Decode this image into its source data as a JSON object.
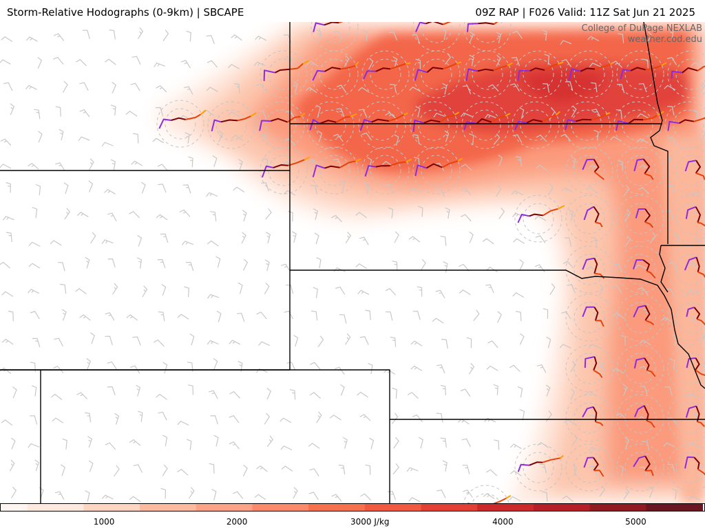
{
  "header": {
    "title_left": "Storm-Relative Hodographs (0-9km) | SBCAPE",
    "title_right": "09Z RAP | F026 Valid: 11Z Sat Jun 21 2025"
  },
  "credit": {
    "line1": "College of DuPage NEXLAB",
    "line2": "weather.cod.edu"
  },
  "colorbar": {
    "unit": "J/kg",
    "range": [
      0,
      5500
    ],
    "tick_values": [
      1000,
      2000,
      3000,
      4000,
      5000
    ],
    "tick_labels": [
      "1000",
      "2000",
      "3000 J/kg",
      "4000",
      "5000"
    ],
    "colors": [
      "#fff5f0",
      "#fee9df",
      "#fdd5c1",
      "#fcbba1",
      "#fca285",
      "#fb8a6a",
      "#f6724f",
      "#ef5a40",
      "#e24034",
      "#cc2a2a",
      "#b61f27",
      "#8f1a22",
      "#6b1722"
    ]
  },
  "layers": {
    "field": "SBCAPE",
    "overlay": "Storm-Relative Hodographs (0-9km)",
    "wind_barbs": true,
    "state_borders": true,
    "hodograph_colors": [
      "#8a2be2",
      "#7a0000",
      "#e8410a",
      "#ffa000"
    ]
  }
}
